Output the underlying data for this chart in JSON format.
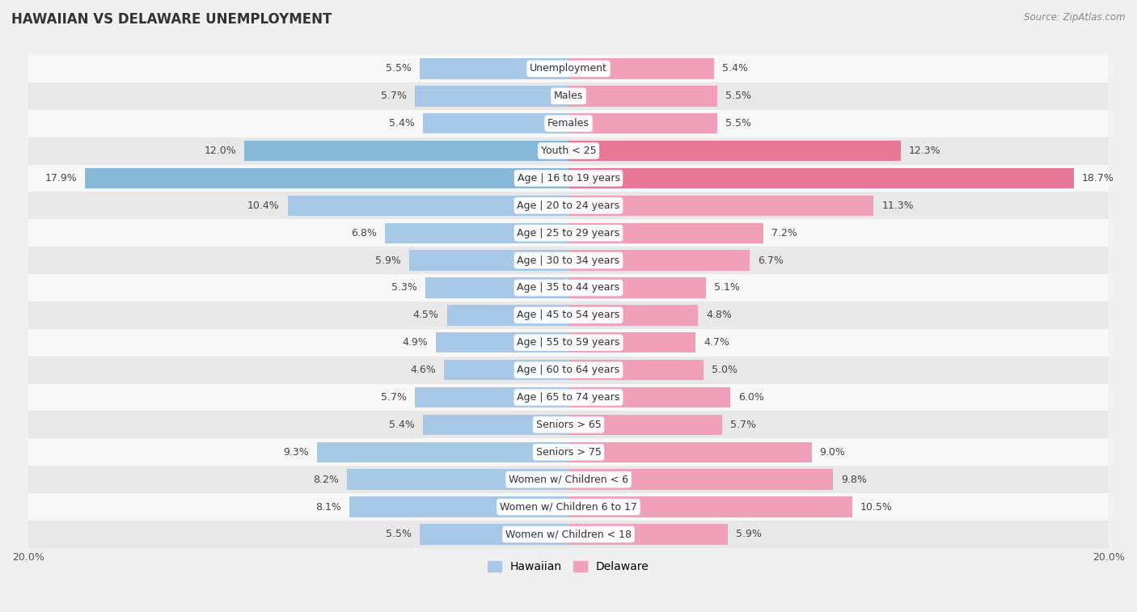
{
  "title": "HAWAIIAN VS DELAWARE UNEMPLOYMENT",
  "source": "Source: ZipAtlas.com",
  "categories": [
    "Unemployment",
    "Males",
    "Females",
    "Youth < 25",
    "Age | 16 to 19 years",
    "Age | 20 to 24 years",
    "Age | 25 to 29 years",
    "Age | 30 to 34 years",
    "Age | 35 to 44 years",
    "Age | 45 to 54 years",
    "Age | 55 to 59 years",
    "Age | 60 to 64 years",
    "Age | 65 to 74 years",
    "Seniors > 65",
    "Seniors > 75",
    "Women w/ Children < 6",
    "Women w/ Children 6 to 17",
    "Women w/ Children < 18"
  ],
  "hawaiian": [
    5.5,
    5.7,
    5.4,
    12.0,
    17.9,
    10.4,
    6.8,
    5.9,
    5.3,
    4.5,
    4.9,
    4.6,
    5.7,
    5.4,
    9.3,
    8.2,
    8.1,
    5.5
  ],
  "delaware": [
    5.4,
    5.5,
    5.5,
    12.3,
    18.7,
    11.3,
    7.2,
    6.7,
    5.1,
    4.8,
    4.7,
    5.0,
    6.0,
    5.7,
    9.0,
    9.8,
    10.5,
    5.9
  ],
  "hawaiian_color": "#a8c8e8",
  "delaware_color": "#f0a0b8",
  "hawaiian_highlight_idx": [
    3,
    4
  ],
  "delaware_highlight_idx": [
    3,
    4
  ],
  "hawaiian_highlight_color": "#88b8d8",
  "delaware_highlight_color": "#e87898",
  "bg_color": "#f0f0f0",
  "row_bg_even": "#f8f8f8",
  "row_bg_odd": "#e8e8e8",
  "max_val": 20.0,
  "bar_height": 0.75,
  "label_fontsize": 9.0,
  "title_fontsize": 12,
  "value_fontsize": 9.0,
  "source_fontsize": 8.5
}
